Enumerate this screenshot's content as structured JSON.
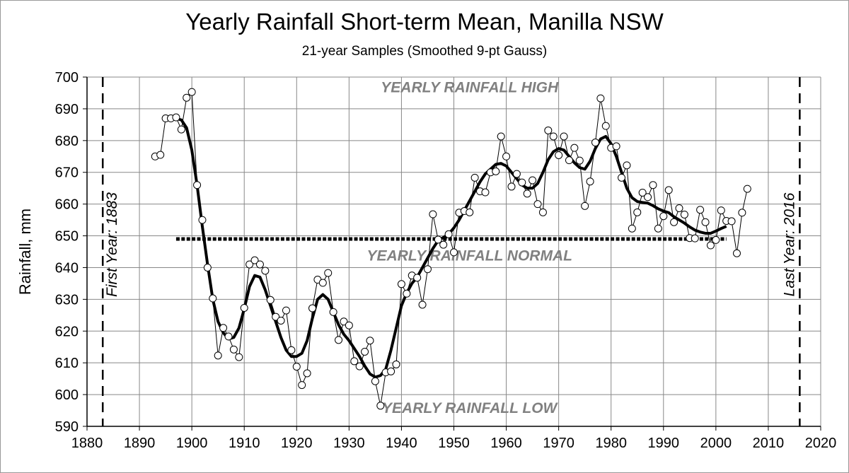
{
  "chart_data": {
    "type": "line",
    "title": "Yearly Rainfall Short-term Mean, Manilla NSW",
    "subtitle": "21-year Samples (Smoothed 9-pt Gauss)",
    "xlabel": "",
    "ylabel": "Rainfall, mm",
    "xlim": [
      1880,
      2020
    ],
    "ylim": [
      590,
      700
    ],
    "x_ticks": [
      1880,
      1890,
      1900,
      1910,
      1920,
      1930,
      1940,
      1950,
      1960,
      1970,
      1980,
      1990,
      2000,
      2010,
      2020
    ],
    "y_ticks": [
      590,
      600,
      610,
      620,
      630,
      640,
      650,
      660,
      670,
      680,
      690,
      700
    ],
    "grid": true,
    "series": [
      {
        "style": "thin line with open circle markers",
        "x_start": 1893,
        "values": [
          675,
          675.5,
          687,
          687,
          687.3,
          683.5,
          693.5,
          695.3,
          666,
          655,
          640,
          630.3,
          612.3,
          621,
          618.3,
          614.2,
          611.8,
          627.3,
          641,
          642.3,
          641,
          639,
          629.8,
          624.5,
          623.3,
          626.5,
          614,
          608.8,
          603,
          606.7,
          627.2,
          636.2,
          635.2,
          638.3,
          626,
          617.2,
          623,
          621.8,
          610.5,
          608.9,
          613.5,
          617,
          604.2,
          596.5,
          607,
          607.3,
          609.5,
          634.8,
          631.8,
          637.5,
          636.8,
          628.3,
          639.5,
          656.8,
          648.8,
          647.2,
          650.5,
          644.8,
          657.3,
          657.8,
          657.4,
          668.3,
          664,
          663.7,
          670,
          670.3,
          681.3,
          675,
          665.5,
          669.5,
          666.8,
          663.3,
          667.5,
          660,
          657.4,
          683.2,
          681.3,
          675.4,
          681.3,
          673.8,
          677.7,
          673.7,
          659.4,
          667.1,
          679.4,
          693.3,
          684.6,
          677.7,
          678.2,
          668.3,
          672.2,
          652.3,
          657.4,
          663.6,
          662.2,
          666,
          652.3,
          656.2,
          664.4,
          654.3,
          658.7,
          656.7,
          649.3,
          649.2,
          658.2,
          654.3,
          647,
          648.7,
          658,
          654.7,
          654.6,
          644.5,
          657.3,
          664.8
        ]
      },
      {
        "style": "thick smoothed line",
        "x_start": 1897,
        "values": [
          687,
          686.5,
          684,
          677,
          666,
          653,
          641,
          630,
          623,
          619.5,
          617.5,
          618,
          621,
          627,
          634,
          637.5,
          637,
          633,
          628,
          623,
          618,
          614,
          612,
          612,
          613,
          617,
          624,
          630,
          631.5,
          630,
          626,
          622,
          619,
          617,
          614.5,
          612,
          609,
          606.5,
          605.5,
          606,
          608,
          614,
          621,
          628,
          632,
          635,
          637,
          640,
          643,
          646,
          648.5,
          649.5,
          650.5,
          652.5,
          655,
          658,
          661,
          664,
          667,
          669.5,
          671,
          672.5,
          672.8,
          672,
          670,
          668,
          666,
          665,
          665,
          666.5,
          670,
          674,
          676.5,
          677.5,
          677,
          675,
          673,
          671.5,
          671,
          673.5,
          677.5,
          680.5,
          681.3,
          679,
          675,
          670,
          665,
          662,
          660.8,
          660.5,
          660.3,
          659.5,
          658.5,
          657.8,
          657.3,
          656,
          655,
          654,
          652.8,
          651.8,
          651.2,
          650.8,
          650.8,
          651.5,
          652.3,
          653
        ]
      }
    ],
    "normal_line": {
      "value": 649,
      "x_range": [
        1897,
        2002
      ]
    },
    "first_year": {
      "year": 1883,
      "label": "First Year: 1883"
    },
    "last_year": {
      "year": 2016,
      "label": "Last Year: 2016"
    },
    "annotations": {
      "high": {
        "text": "YEARLY RAINFALL HIGH",
        "x": 1953,
        "y": 697
      },
      "normal": {
        "text": "YEARLY RAINFALL NORMAL",
        "x": 1953,
        "y": 644
      },
      "low": {
        "text": "YEARLY RAINFALL LOW",
        "x": 1953,
        "y": 596
      }
    },
    "annotation_color": "#808080"
  }
}
